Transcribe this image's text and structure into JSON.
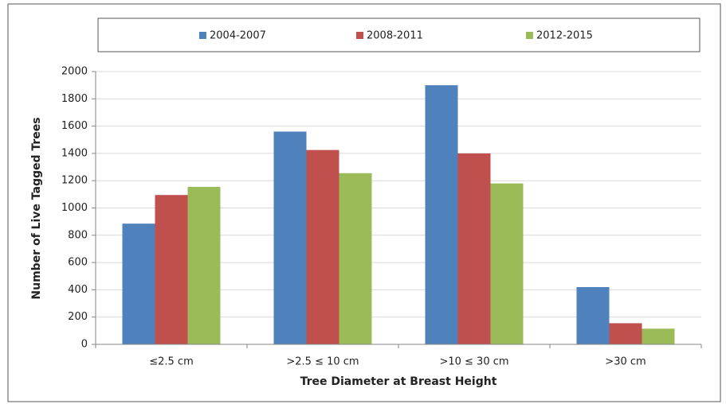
{
  "chart_data": {
    "type": "bar",
    "x_label": "Tree Diameter at Breast Height",
    "y_label": "Number of Live Tagged Trees",
    "categories": [
      "≤2.5 cm",
      ">2.5 ≤ 10 cm",
      ">10 ≤ 30 cm",
      ">30 cm"
    ],
    "series": [
      {
        "name": "2004-2007",
        "color": "#4f81bd",
        "values": [
          885,
          1560,
          1900,
          420
        ]
      },
      {
        "name": "2008-2011",
        "color": "#c0504d",
        "values": [
          1095,
          1425,
          1400,
          155
        ]
      },
      {
        "name": "2012-2015",
        "color": "#9bbb59",
        "values": [
          1155,
          1255,
          1180,
          115
        ]
      }
    ],
    "ylim": [
      0,
      2000
    ],
    "yticks": [
      0,
      200,
      400,
      600,
      800,
      1000,
      1200,
      1400,
      1600,
      1800,
      2000
    ],
    "grid": true,
    "legend": "top"
  }
}
